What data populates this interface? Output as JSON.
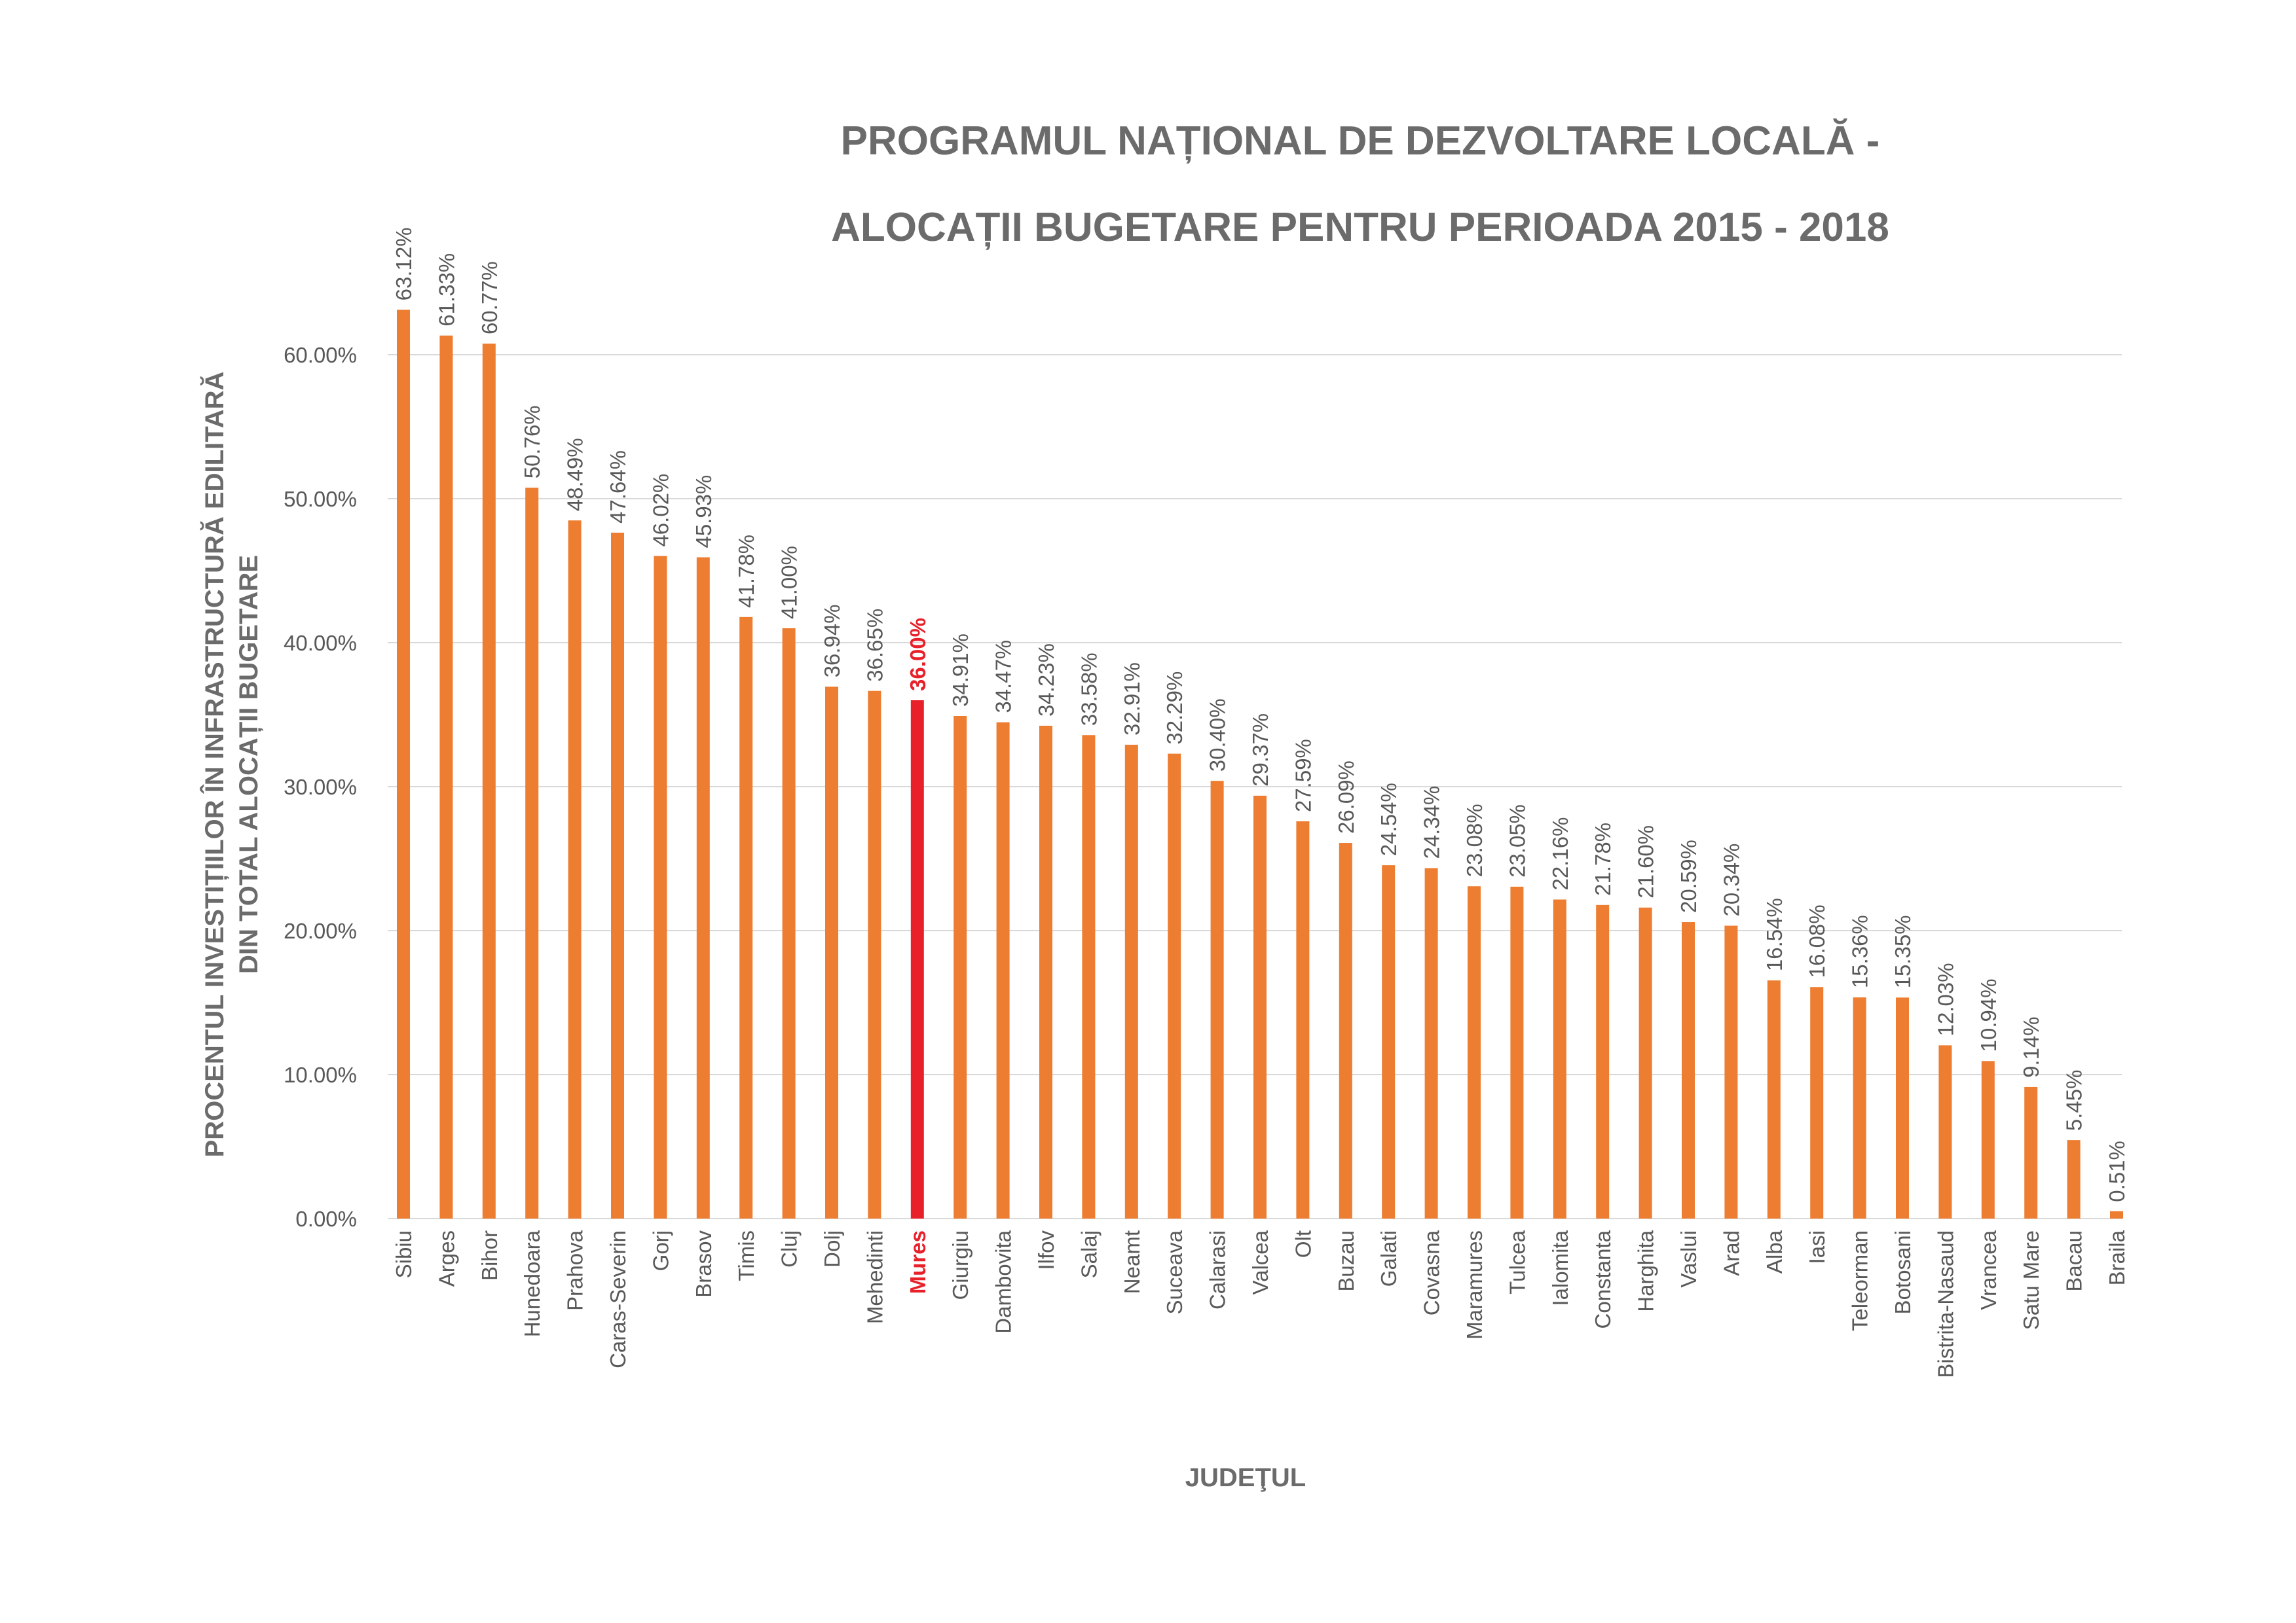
{
  "chart_data": {
    "type": "bar",
    "title": [
      "PROGRAMUL NAȚIONAL DE DEZVOLTARE LOCALĂ  -",
      "ALOCAȚII BUGETARE PENTRU PERIOADA 2015 - 2018"
    ],
    "xlabel": "JUDEŢUL",
    "ylabel": [
      "PROCENTUL INVESTIȚIILOR ÎN INFRASTRUCTURĂ EDILITARĂ",
      "DIN TOTAL ALOCAȚII BUGETARE"
    ],
    "ylim": [
      0,
      65
    ],
    "yticks": [
      0,
      10,
      20,
      30,
      40,
      50,
      60
    ],
    "ytick_labels": [
      "0.00%",
      "10.00%",
      "20.00%",
      "30.00%",
      "40.00%",
      "50.00%",
      "60.00%"
    ],
    "grid": true,
    "highlight_category": "Mures",
    "colors": {
      "bar": "#ed7d31",
      "highlight": "#e8202a",
      "text": "#595959",
      "axis_title": "#6b6b6b",
      "grid": "#d9d9d9"
    },
    "categories": [
      "Sibiu",
      "Arges",
      "Bihor",
      "Hunedoara",
      "Prahova",
      "Caras-Severin",
      "Gorj",
      "Brasov",
      "Timis",
      "Cluj",
      "Dolj",
      "Mehedinti",
      "Mures",
      "Giurgiu",
      "Dambovita",
      "Ilfov",
      "Salaj",
      "Neamt",
      "Suceava",
      "Calarasi",
      "Valcea",
      "Olt",
      "Buzau",
      "Galati",
      "Covasna",
      "Maramures",
      "Tulcea",
      "Ialomita",
      "Constanta",
      "Harghita",
      "Vaslui",
      "Arad",
      "Alba",
      "Iasi",
      "Teleorman",
      "Botosani",
      "Bistrita-Nasaud",
      "Vrancea",
      "Satu Mare",
      "Bacau",
      "Braila"
    ],
    "values": [
      63.12,
      61.33,
      60.77,
      50.76,
      48.49,
      47.64,
      46.02,
      45.93,
      41.78,
      41.0,
      36.94,
      36.65,
      36.0,
      34.91,
      34.47,
      34.23,
      33.58,
      32.91,
      32.29,
      30.4,
      29.37,
      27.59,
      26.09,
      24.54,
      24.34,
      23.08,
      23.05,
      22.16,
      21.78,
      21.6,
      20.59,
      20.34,
      16.54,
      16.08,
      15.36,
      15.35,
      12.03,
      10.94,
      9.14,
      5.45,
      0.51
    ],
    "value_labels": [
      "63.12%",
      "61.33%",
      "60.77%",
      "50.76%",
      "48.49%",
      "47.64%",
      "46.02%",
      "45.93%",
      "41.78%",
      "41.00%",
      "36.94%",
      "36.65%",
      "36.00%",
      "34.91%",
      "34.47%",
      "34.23%",
      "33.58%",
      "32.91%",
      "32.29%",
      "30.40%",
      "29.37%",
      "27.59%",
      "26.09%",
      "24.54%",
      "24.34%",
      "23.08%",
      "23.05%",
      "22.16%",
      "21.78%",
      "21.60%",
      "20.59%",
      "20.34%",
      "16.54%",
      "16.08%",
      "15.36%",
      "15.35%",
      "12.03%",
      "10.94%",
      "9.14%",
      "5.45%",
      "0.51%"
    ]
  }
}
